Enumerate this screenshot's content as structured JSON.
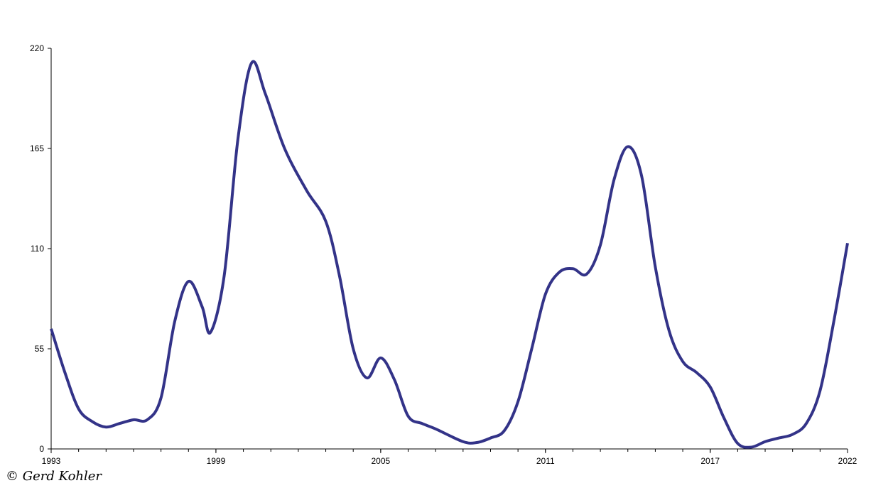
{
  "chart_data": {
    "type": "line",
    "x": [
      1993.0,
      1993.5,
      1994.0,
      1994.5,
      1995.0,
      1995.5,
      1996.0,
      1996.5,
      1997.0,
      1997.5,
      1998.0,
      1998.5,
      1998.8,
      1999.3,
      1999.8,
      2000.3,
      2000.8,
      2001.5,
      2002.3,
      2003.0,
      2003.5,
      2004.0,
      2004.5,
      2005.0,
      2005.5,
      2006.0,
      2006.5,
      2007.0,
      2008.0,
      2008.5,
      2009.0,
      2009.5,
      2010.0,
      2010.5,
      2011.0,
      2011.5,
      2012.0,
      2012.5,
      2013.0,
      2013.5,
      2014.0,
      2014.5,
      2015.0,
      2015.5,
      2016.0,
      2016.5,
      2017.0,
      2017.5,
      2018.0,
      2018.5,
      2019.0,
      2019.5,
      2020.0,
      2020.5,
      2021.0,
      2021.5,
      2022.0
    ],
    "series": [
      {
        "color": "#333388",
        "values": [
          66,
          42,
          22,
          15,
          12,
          14,
          16,
          16,
          28,
          70,
          92,
          78,
          64,
          95,
          170,
          212,
          195,
          165,
          142,
          125,
          95,
          55,
          39,
          50,
          38,
          18,
          14,
          11,
          4,
          3.5,
          6,
          10,
          26,
          55,
          85,
          97,
          99,
          96,
          112,
          148,
          166,
          150,
          100,
          65,
          48,
          42,
          34,
          17,
          3,
          1,
          4,
          6,
          8,
          14,
          32,
          70,
          113
        ]
      }
    ],
    "xlim": [
      1993,
      2022
    ],
    "xticks": [
      1993,
      1999,
      2005,
      2011,
      2017,
      2022
    ],
    "xminorticks": [
      1993,
      1994,
      1995,
      1996,
      1997,
      1998,
      1999,
      2000,
      2001,
      2002,
      2003,
      2004,
      2005,
      2006,
      2007,
      2008,
      2009,
      2010,
      2011,
      2012,
      2013,
      2014,
      2015,
      2016,
      2017,
      2018,
      2019,
      2020,
      2021,
      2022
    ],
    "ylim": [
      0,
      220
    ],
    "yticks": [
      0,
      55,
      110,
      165,
      220
    ],
    "grid": false,
    "copyright": "© Gerd Kohler"
  }
}
